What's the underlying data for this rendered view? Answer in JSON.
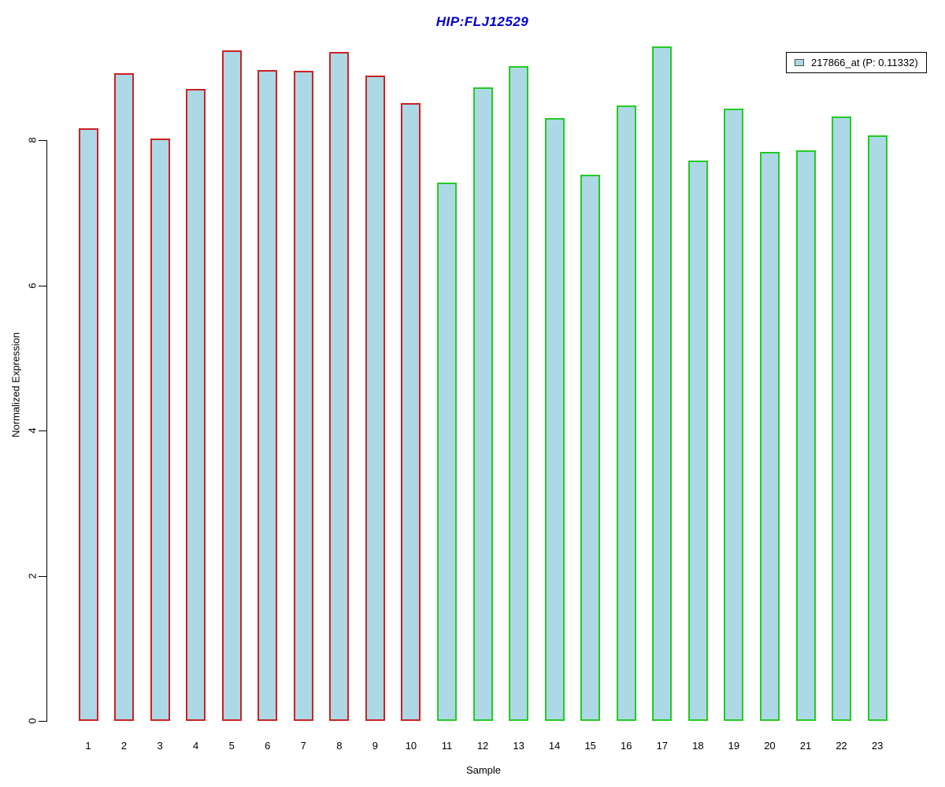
{
  "chart_data": {
    "type": "bar",
    "title": "HIP:FLJ12529",
    "title_color": "#0000CD",
    "xlabel": "Sample",
    "ylabel": "Normalized Expression",
    "categories": [
      "1",
      "2",
      "3",
      "4",
      "5",
      "6",
      "7",
      "8",
      "9",
      "10",
      "11",
      "12",
      "13",
      "14",
      "15",
      "16",
      "17",
      "18",
      "19",
      "20",
      "21",
      "22",
      "23"
    ],
    "values": [
      8.16,
      8.92,
      8.02,
      8.7,
      9.24,
      8.96,
      8.95,
      9.21,
      8.89,
      8.51,
      7.41,
      8.73,
      9.02,
      8.3,
      7.52,
      8.48,
      9.29,
      7.72,
      8.43,
      7.84,
      7.86,
      8.33,
      8.07
    ],
    "bar_fill": "#ADD8E6",
    "bar_border_colors": [
      "#CC2222",
      "#CC2222",
      "#CC2222",
      "#CC2222",
      "#CC2222",
      "#CC2222",
      "#CC2222",
      "#CC2222",
      "#CC2222",
      "#CC2222",
      "#22CC22",
      "#22CC22",
      "#22CC22",
      "#22CC22",
      "#22CC22",
      "#22CC22",
      "#22CC22",
      "#22CC22",
      "#22CC22",
      "#22CC22",
      "#22CC22",
      "#22CC22",
      "#22CC22"
    ],
    "y_ticks": [
      0,
      2,
      4,
      6,
      8
    ],
    "ylim": [
      0,
      9.4
    ],
    "grid": false,
    "legend": {
      "position": "top-right",
      "label": "217866_at (P: 0.11332)",
      "swatch_fill": "#ADD8E6",
      "swatch_border": "#4d4d4d",
      "box_border": "#000000"
    }
  }
}
